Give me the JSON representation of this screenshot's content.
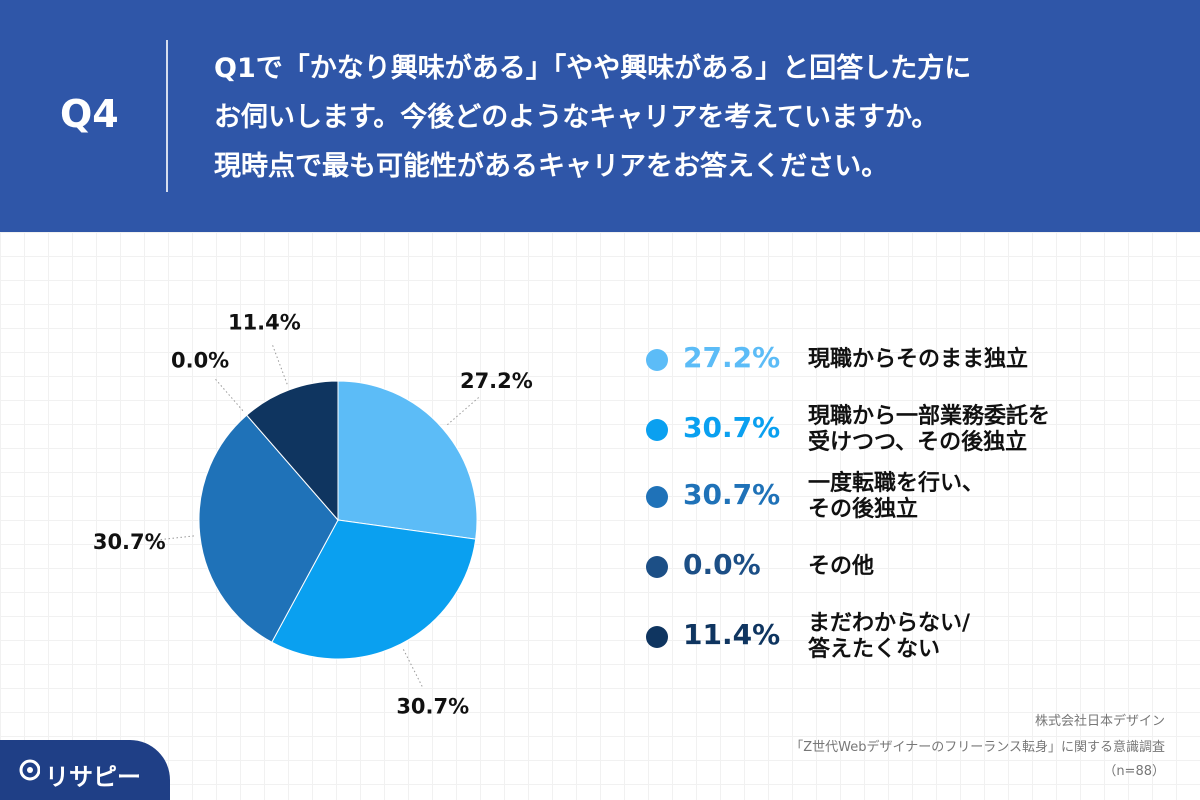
{
  "chart_data": {
    "type": "pie",
    "question_label": "Q4",
    "title": "Q1で「かなり興味がある」「やや興味がある」と回答した方に\nお伺いします。今後どのようなキャリアを考えていますか。\n現時点で最も可能性があるキャリアをお答えください。",
    "categories": [
      "現職からそのまま独立",
      "現職から一部業務委託を\n受けつつ、その後独立",
      "一度転職を行い、\nその後独立",
      "その他",
      "まだわからない/\n答えたくない"
    ],
    "values": [
      27.2,
      30.7,
      30.7,
      0.0,
      11.4
    ],
    "value_labels": [
      "27.2%",
      "30.7%",
      "30.7%",
      "0.0%",
      "11.4%"
    ],
    "colors": [
      "#5cbcf7",
      "#0aa0f0",
      "#1f72b8",
      "#1c4f86",
      "#0f3560"
    ],
    "notes": [
      "株式会社日本デザイン",
      "「Z世代Webデザイナーのフリーランス転身」に関する意識調査",
      "（n=88）"
    ],
    "logo": "リサピー"
  }
}
